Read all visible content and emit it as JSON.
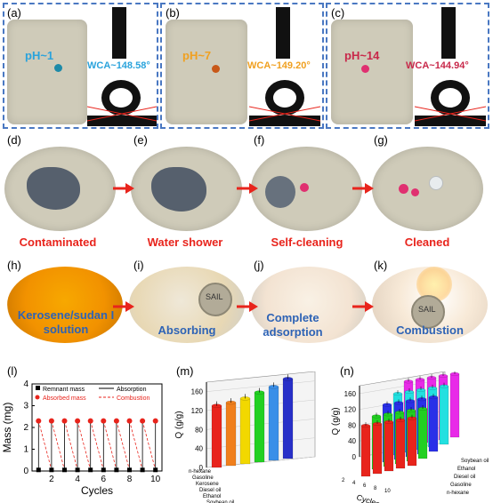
{
  "panel_labels": [
    "(a)",
    "(b)",
    "(c)",
    "(d)",
    "(e)",
    "(f)",
    "(g)",
    "(h)",
    "(i)",
    "(j)",
    "(k)",
    "(l)",
    "(m)",
    "(n)"
  ],
  "top_row": [
    {
      "ph": "pH~1",
      "wca": "WCA~148.58°",
      "color": "#2aa3dc"
    },
    {
      "ph": "pH~7",
      "wca": "WCA~149.20°",
      "color": "#f0a020"
    },
    {
      "ph": "pH~14",
      "wca": "WCA~144.94°",
      "color": "#c8284a"
    }
  ],
  "row2_captions": [
    "Contaminated",
    "Water shower",
    "Self-cleaning",
    "Cleaned"
  ],
  "row2_color": "#e8241c",
  "row3_captions": [
    "Kerosene/sudan I solution",
    "Absorbing",
    "Complete adsorption",
    "Combustion"
  ],
  "row3_color": "#2e63b5",
  "coin_text": "SAIL",
  "chart_data": [
    {
      "type": "line",
      "xlabel": "Cycles",
      "ylabel": "Mass (mg)",
      "ylim": [
        0,
        4
      ],
      "xlim": [
        0.5,
        10.5
      ],
      "xticks": [
        2,
        4,
        6,
        8,
        10
      ],
      "yticks": [
        0,
        1,
        2,
        3,
        4
      ],
      "legend": [
        "Remnant mass",
        "Absorbed mass",
        "Absorption",
        "Combustion"
      ],
      "series": [
        {
          "name": "Remnant mass",
          "x": [
            1,
            2,
            3,
            4,
            5,
            6,
            7,
            8,
            9,
            10
          ],
          "values": [
            0.05,
            0.05,
            0.05,
            0.05,
            0.05,
            0.05,
            0.05,
            0.05,
            0.05,
            0.05
          ]
        },
        {
          "name": "Absorbed mass",
          "x": [
            1,
            2,
            3,
            4,
            5,
            6,
            7,
            8,
            9,
            10
          ],
          "values": [
            2.3,
            2.3,
            2.3,
            2.3,
            2.3,
            2.3,
            2.3,
            2.3,
            2.3,
            2.3
          ]
        }
      ]
    },
    {
      "type": "bar",
      "ylabel": "Q (g/g)",
      "ylim": [
        0,
        180
      ],
      "yticks": [
        0,
        40,
        80,
        120,
        160
      ],
      "categories": [
        "n-hexane",
        "Gasoline",
        "Kerosene",
        "Diesel oil",
        "Ethanol",
        "Soybean oil"
      ],
      "values": [
        130,
        133,
        138,
        147,
        155,
        168
      ],
      "colors": [
        "#e8241c",
        "#f07f1c",
        "#f2d800",
        "#22d022",
        "#3a8fe8",
        "#2830c8"
      ]
    },
    {
      "type": "bar",
      "ylabel": "Q (g/g)",
      "xlabel": "Cycles",
      "ylim": [
        0,
        180
      ],
      "yticks": [
        0,
        40,
        80,
        120,
        160
      ],
      "categories": [
        "n-hexane",
        "Gasoline",
        "Diesel oil",
        "Ethanol",
        "Soybean oil"
      ],
      "cycle_ticks": [
        "2",
        "4",
        "6",
        "8",
        "10"
      ],
      "series": [
        {
          "name": "n-hexane",
          "values": [
            128,
            126,
            124,
            122,
            120
          ],
          "color": "#e8241c"
        },
        {
          "name": "Gasoline",
          "values": [
            134,
            132,
            130,
            128,
            126
          ],
          "color": "#22d022"
        },
        {
          "name": "Diesel oil",
          "values": [
            145,
            143,
            141,
            139,
            137
          ],
          "color": "#2a30e8"
        },
        {
          "name": "Ethanol",
          "values": [
            155,
            153,
            151,
            149,
            147
          ],
          "color": "#22e0e0"
        },
        {
          "name": "Soybean oil",
          "values": [
            168,
            166,
            164,
            162,
            160
          ],
          "color": "#e82ae8"
        }
      ]
    }
  ]
}
